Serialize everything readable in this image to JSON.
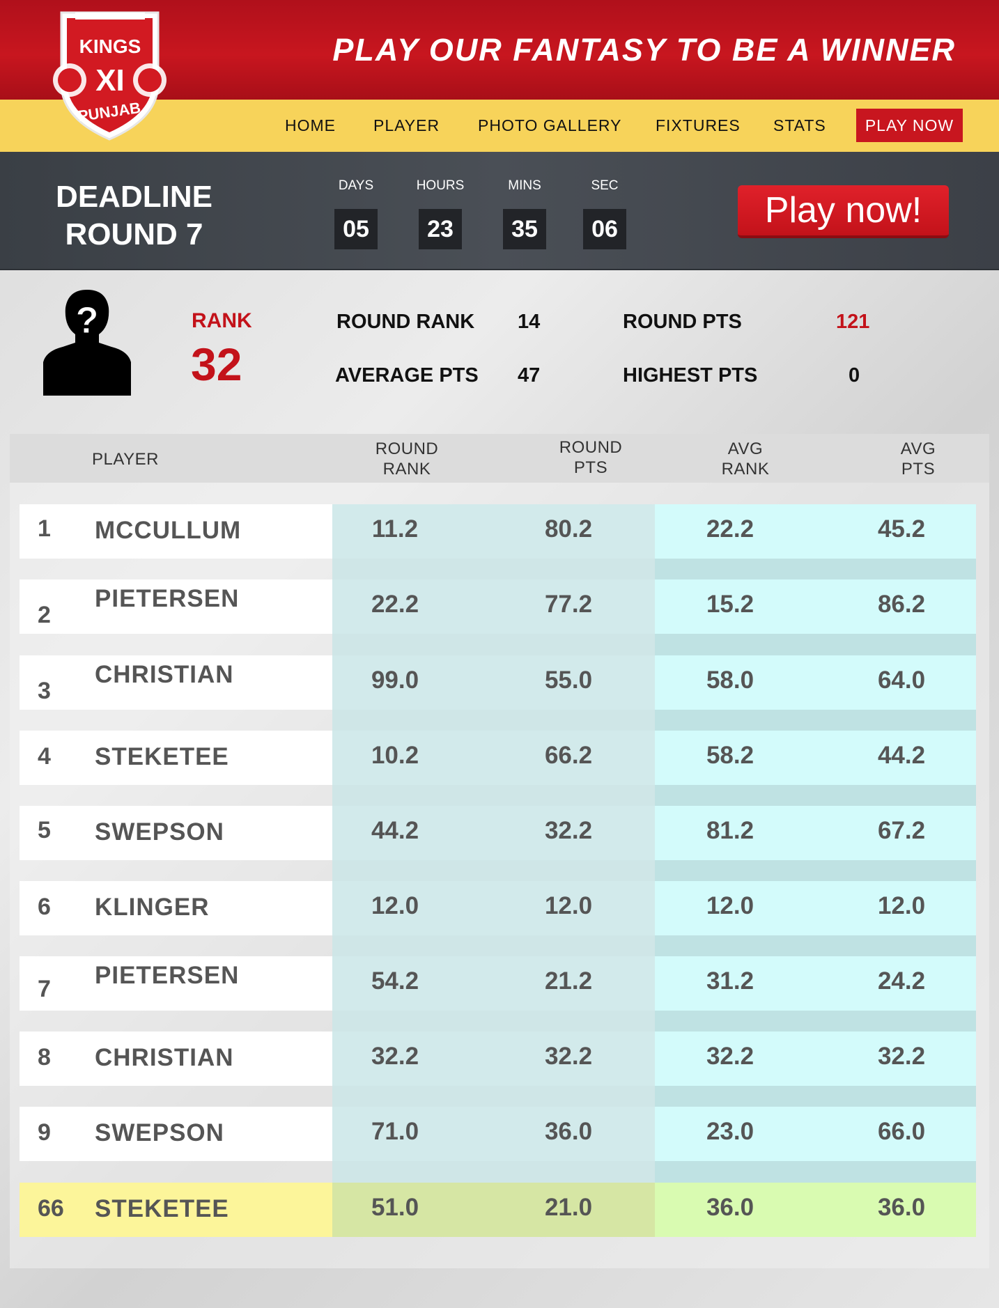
{
  "header": {
    "logo": {
      "line1": "KINGS",
      "line2": "XI",
      "line3": "PUNJAB"
    },
    "tagline": "PLAY OUR FANTASY TO BE A WINNER",
    "nav": [
      "HOME",
      "PLAYER",
      "PHOTO GALLERY",
      "FIXTURES",
      "STATS"
    ],
    "nav_cta": "PLAY NOW"
  },
  "deadline": {
    "line1": "DEADLINE",
    "line2": "ROUND 7",
    "timer": [
      {
        "label": "DAYS",
        "value": "05"
      },
      {
        "label": "HOURS",
        "value": "23"
      },
      {
        "label": "MINS",
        "value": "35"
      },
      {
        "label": "SEC",
        "value": "06"
      }
    ],
    "cta": "Play now!"
  },
  "summary": {
    "rank_label": "RANK",
    "rank_value": "32",
    "round_rank_label": "ROUND RANK",
    "round_rank_value": "14",
    "average_pts_label": "AVERAGE PTS",
    "average_pts_value": "47",
    "round_pts_label": "ROUND PTS",
    "round_pts_value": "121",
    "highest_pts_label": "HIGHEST PTS",
    "highest_pts_value": "0"
  },
  "table": {
    "headers": {
      "player": "PLAYER",
      "round_rank_1": "ROUND",
      "round_rank_2": "RANK",
      "round_pts_1": "ROUND",
      "round_pts_2": "PTS",
      "avg_rank_1": "AVG",
      "avg_rank_2": "RANK",
      "avg_pts_1": "AVG",
      "avg_pts_2": "PTS"
    },
    "rows": [
      {
        "num": "1",
        "name": "MCCULLUM",
        "round_rank": "11.2",
        "round_pts": "80.2",
        "avg_rank": "22.2",
        "avg_pts": "45.2"
      },
      {
        "num": "2",
        "name": "PIETERSEN",
        "round_rank": "22.2",
        "round_pts": "77.2",
        "avg_rank": "15.2",
        "avg_pts": "86.2"
      },
      {
        "num": "3",
        "name": "CHRISTIAN",
        "round_rank": "99.0",
        "round_pts": "55.0",
        "avg_rank": "58.0",
        "avg_pts": "64.0"
      },
      {
        "num": "4",
        "name": "STEKETEE",
        "round_rank": "10.2",
        "round_pts": "66.2",
        "avg_rank": "58.2",
        "avg_pts": "44.2"
      },
      {
        "num": "5",
        "name": "SWEPSON",
        "round_rank": "44.2",
        "round_pts": "32.2",
        "avg_rank": "81.2",
        "avg_pts": "67.2"
      },
      {
        "num": "6",
        "name": "KLINGER",
        "round_rank": "12.0",
        "round_pts": "12.0",
        "avg_rank": "12.0",
        "avg_pts": "12.0"
      },
      {
        "num": "7",
        "name": "PIETERSEN",
        "round_rank": "54.2",
        "round_pts": "21.2",
        "avg_rank": "31.2",
        "avg_pts": "24.2"
      },
      {
        "num": "8",
        "name": "CHRISTIAN",
        "round_rank": "32.2",
        "round_pts": "32.2",
        "avg_rank": "32.2",
        "avg_pts": "32.2"
      },
      {
        "num": "9",
        "name": "SWEPSON",
        "round_rank": "71.0",
        "round_pts": "36.0",
        "avg_rank": "23.0",
        "avg_pts": "66.0"
      },
      {
        "num": "66",
        "name": "STEKETEE",
        "round_rank": "51.0",
        "round_pts": "21.0",
        "avg_rank": "36.0",
        "avg_pts": "36.0"
      }
    ]
  },
  "colors": {
    "brand_red": "#c8161f",
    "nav_yellow": "#f7d35a",
    "highlight_row": "#fcf59a"
  }
}
